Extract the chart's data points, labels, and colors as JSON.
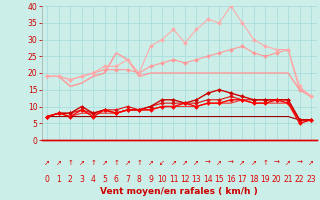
{
  "background_color": "#cceee8",
  "grid_color": "#aadddd",
  "xlabel": "Vent moyen/en rafales ( km/h )",
  "xlim": [
    -0.5,
    23.5
  ],
  "ylim": [
    0,
    40
  ],
  "xticks": [
    0,
    1,
    2,
    3,
    4,
    5,
    6,
    7,
    8,
    9,
    10,
    11,
    12,
    13,
    14,
    15,
    16,
    17,
    18,
    19,
    20,
    21,
    22,
    23
  ],
  "yticks": [
    0,
    5,
    10,
    15,
    20,
    25,
    30,
    35,
    40
  ],
  "series": [
    {
      "x": [
        0,
        1,
        2,
        3,
        4,
        5,
        6,
        7,
        8,
        9,
        10,
        11,
        12,
        13,
        14,
        15,
        16,
        17,
        18,
        19,
        20,
        21,
        22,
        23
      ],
      "y": [
        19,
        19,
        16,
        17,
        19,
        20,
        26,
        24,
        19,
        20,
        20,
        20,
        20,
        20,
        20,
        20,
        20,
        20,
        20,
        20,
        20,
        20,
        15,
        13
      ],
      "color": "#ff9999",
      "marker": null,
      "linewidth": 1.0,
      "zorder": 2
    },
    {
      "x": [
        0,
        1,
        2,
        3,
        4,
        5,
        6,
        7,
        8,
        9,
        10,
        11,
        12,
        13,
        14,
        15,
        16,
        17,
        18,
        19,
        20,
        21,
        22,
        23
      ],
      "y": [
        19,
        19,
        18,
        19,
        20,
        22,
        22,
        24,
        20,
        28,
        30,
        33,
        29,
        33,
        36,
        35,
        40,
        35,
        30,
        28,
        27,
        27,
        16,
        13
      ],
      "color": "#ffaaaa",
      "marker": "D",
      "markersize": 2.0,
      "linewidth": 0.8,
      "zorder": 3
    },
    {
      "x": [
        0,
        1,
        2,
        3,
        4,
        5,
        6,
        7,
        8,
        9,
        10,
        11,
        12,
        13,
        14,
        15,
        16,
        17,
        18,
        19,
        20,
        21,
        22,
        23
      ],
      "y": [
        19,
        19,
        18,
        19,
        20,
        21,
        21,
        21,
        20,
        22,
        23,
        24,
        23,
        24,
        25,
        26,
        27,
        28,
        26,
        25,
        26,
        27,
        15,
        13
      ],
      "color": "#ff9999",
      "marker": "D",
      "markersize": 2.0,
      "linewidth": 0.8,
      "zorder": 2
    },
    {
      "x": [
        0,
        1,
        2,
        3,
        4,
        5,
        6,
        7,
        8,
        9,
        10,
        11,
        12,
        13,
        14,
        15,
        16,
        17,
        18,
        19,
        20,
        21,
        22,
        23
      ],
      "y": [
        7,
        8,
        8,
        10,
        8,
        9,
        8,
        9,
        9,
        10,
        12,
        12,
        11,
        12,
        14,
        15,
        14,
        13,
        12,
        12,
        12,
        12,
        6,
        6
      ],
      "color": "#cc0000",
      "marker": "D",
      "markersize": 2.0,
      "linewidth": 1.0,
      "zorder": 4
    },
    {
      "x": [
        0,
        1,
        2,
        3,
        4,
        5,
        6,
        7,
        8,
        9,
        10,
        11,
        12,
        13,
        14,
        15,
        16,
        17,
        18,
        19,
        20,
        21,
        22,
        23
      ],
      "y": [
        7,
        8,
        7,
        9,
        7,
        9,
        8,
        9,
        9,
        9,
        10,
        10,
        11,
        10,
        11,
        11,
        12,
        12,
        11,
        11,
        12,
        11,
        5,
        6
      ],
      "color": "#ff0000",
      "marker": "D",
      "markersize": 2.0,
      "linewidth": 1.0,
      "zorder": 4
    },
    {
      "x": [
        0,
        1,
        2,
        3,
        4,
        5,
        6,
        7,
        8,
        9,
        10,
        11,
        12,
        13,
        14,
        15,
        16,
        17,
        18,
        19,
        20,
        21,
        22,
        23
      ],
      "y": [
        7,
        8,
        7,
        8,
        8,
        8,
        8,
        9,
        9,
        9,
        10,
        10,
        10,
        10,
        11,
        11,
        11,
        12,
        11,
        11,
        11,
        11,
        6,
        6
      ],
      "color": "#ee3333",
      "marker": null,
      "linewidth": 0.8,
      "zorder": 3
    },
    {
      "x": [
        0,
        1,
        2,
        3,
        4,
        5,
        6,
        7,
        8,
        9,
        10,
        11,
        12,
        13,
        14,
        15,
        16,
        17,
        18,
        19,
        20,
        21,
        22,
        23
      ],
      "y": [
        7,
        7,
        7,
        7,
        7,
        7,
        7,
        7,
        7,
        7,
        7,
        7,
        7,
        7,
        7,
        7,
        7,
        7,
        7,
        7,
        7,
        7,
        6,
        6
      ],
      "color": "#990000",
      "marker": null,
      "linewidth": 0.8,
      "zorder": 3
    },
    {
      "x": [
        0,
        1,
        2,
        3,
        4,
        5,
        6,
        7,
        8,
        9,
        10,
        11,
        12,
        13,
        14,
        15,
        16,
        17,
        18,
        19,
        20,
        21,
        22,
        23
      ],
      "y": [
        7,
        8,
        8,
        9,
        8,
        9,
        9,
        10,
        9,
        10,
        11,
        11,
        11,
        11,
        12,
        12,
        13,
        12,
        12,
        12,
        12,
        12,
        6,
        6
      ],
      "color": "#dd1111",
      "marker": "D",
      "markersize": 2.0,
      "linewidth": 0.8,
      "zorder": 3
    }
  ],
  "arrow_color": "#dd0000",
  "line_color": "#dd0000",
  "tick_fontsize": 5.5,
  "xlabel_fontsize": 6.5,
  "xlabel_color": "#cc0000"
}
